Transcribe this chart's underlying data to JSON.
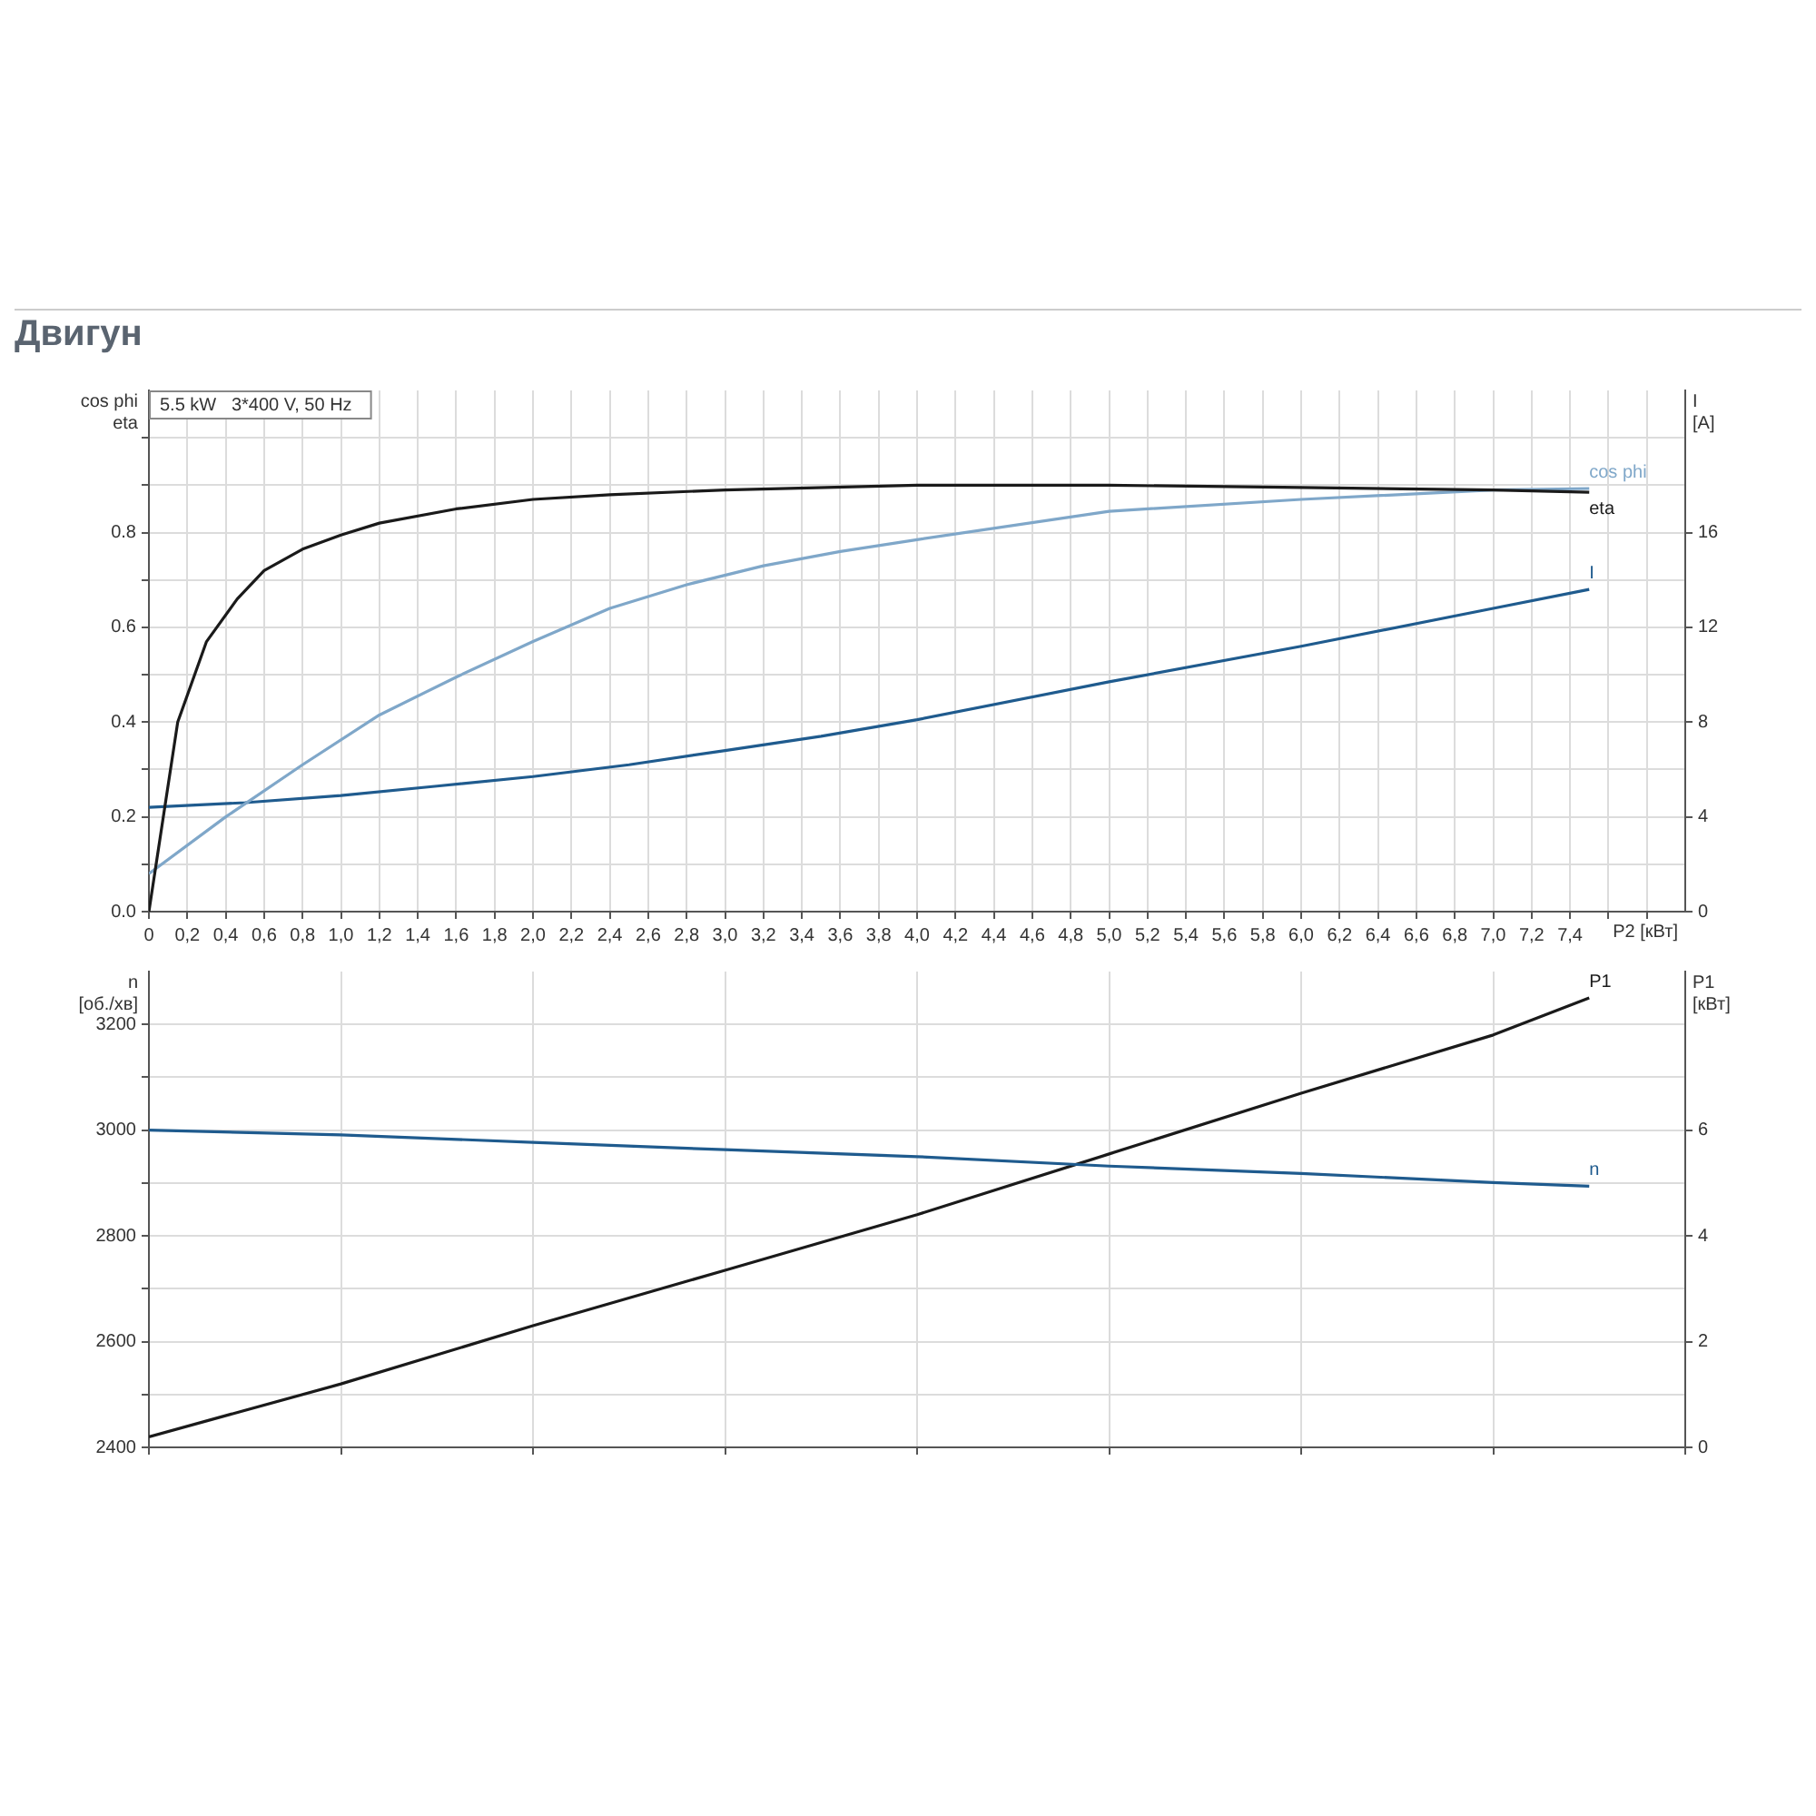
{
  "chart_data": [
    {
      "type": "line",
      "title": "Двигун",
      "xlabel": "P2 [кВт]",
      "ylabel": "cos phi\neta",
      "y2label": "I\n[A]",
      "annotations": [
        "5.5 kW   3*400 V, 50 Hz"
      ],
      "xlim": [
        0,
        8
      ],
      "xticks": [
        {
          "value": 0,
          "label": "0"
        },
        {
          "value": 0.2,
          "label": "0,2"
        },
        {
          "value": 0.4,
          "label": "0,4"
        },
        {
          "value": 0.6,
          "label": "0,6"
        },
        {
          "value": 0.8,
          "label": "0,8"
        },
        {
          "value": 1,
          "label": "1,0"
        },
        {
          "value": 1.2,
          "label": "1,2"
        },
        {
          "value": 1.4,
          "label": "1,4"
        },
        {
          "value": 1.6,
          "label": "1,6"
        },
        {
          "value": 1.8,
          "label": "1,8"
        },
        {
          "value": 2,
          "label": "2,0"
        },
        {
          "value": 2.2,
          "label": "2,2"
        },
        {
          "value": 2.4,
          "label": "2,4"
        },
        {
          "value": 2.6,
          "label": "2,6"
        },
        {
          "value": 2.8,
          "label": "2,8"
        },
        {
          "value": 3,
          "label": "3,0"
        },
        {
          "value": 3.2,
          "label": "3,2"
        },
        {
          "value": 3.4,
          "label": "3,4"
        },
        {
          "value": 3.6,
          "label": "3,6"
        },
        {
          "value": 3.8,
          "label": "3,8"
        },
        {
          "value": 4,
          "label": "4,0"
        },
        {
          "value": 4.2,
          "label": "4,2"
        },
        {
          "value": 4.4,
          "label": "4,4"
        },
        {
          "value": 4.6,
          "label": "4,6"
        },
        {
          "value": 4.8,
          "label": "4,8"
        },
        {
          "value": 5,
          "label": "5,0"
        },
        {
          "value": 5.2,
          "label": "5,2"
        },
        {
          "value": 5.4,
          "label": "5,4"
        },
        {
          "value": 5.6,
          "label": "5,6"
        },
        {
          "value": 5.8,
          "label": "5,8"
        },
        {
          "value": 6,
          "label": "6,0"
        },
        {
          "value": 6.2,
          "label": "6,2"
        },
        {
          "value": 6.4,
          "label": "6,4"
        },
        {
          "value": 6.6,
          "label": "6,6"
        },
        {
          "value": 6.8,
          "label": "6,8"
        },
        {
          "value": 7,
          "label": "7,0"
        },
        {
          "value": 7.2,
          "label": "7,2"
        },
        {
          "value": 7.4,
          "label": "7,4"
        },
        {
          "value": 7.6,
          "label": null
        },
        {
          "value": 7.8,
          "label": null
        }
      ],
      "ylim": [
        0,
        1.1
      ],
      "yticks": [
        {
          "value": 0,
          "label": "0.0"
        },
        {
          "value": 0.1,
          "label": null
        },
        0.2,
        {
          "value": 0.3,
          "label": null
        },
        0.4,
        {
          "value": 0.5,
          "label": null
        },
        0.6,
        {
          "value": 0.7,
          "label": null
        },
        0.8,
        {
          "value": 0.9,
          "label": null
        },
        {
          "value": 1,
          "label": null
        }
      ],
      "y2lim": [
        0,
        22
      ],
      "y2ticks": [
        0,
        4,
        8,
        12,
        16
      ],
      "grid": true,
      "legend": false,
      "marker": "none",
      "line_style": "solid",
      "series": [
        {
          "name": "eta",
          "color": "#1a1a1a",
          "x": [
            0,
            0.15,
            0.3,
            0.46,
            0.6,
            0.8,
            1,
            1.2,
            1.6,
            2,
            2.4,
            3,
            4,
            5,
            6,
            7,
            7.5
          ],
          "values": [
            0,
            0.4,
            0.57,
            0.66,
            0.72,
            0.765,
            0.795,
            0.82,
            0.85,
            0.87,
            0.88,
            0.89,
            0.9,
            0.9,
            0.895,
            0.89,
            0.885
          ]
        },
        {
          "name": "cos phi",
          "color": "#7fa7c9",
          "x": [
            0,
            0.4,
            0.8,
            1.2,
            1.6,
            2,
            2.4,
            2.8,
            3.2,
            3.6,
            4,
            5,
            6,
            7,
            7.5
          ],
          "values": [
            0.08,
            0.2,
            0.31,
            0.415,
            0.495,
            0.57,
            0.64,
            0.69,
            0.73,
            0.76,
            0.785,
            0.845,
            0.87,
            0.89,
            0.893
          ]
        },
        {
          "name": "I",
          "color": "#1f5b8e",
          "axis": "y2",
          "x": [
            0,
            0.5,
            1,
            1.5,
            2,
            2.5,
            3,
            3.5,
            4,
            5,
            6,
            7,
            7.5
          ],
          "values": [
            4.4,
            4.6,
            4.9,
            5.3,
            5.7,
            6.2,
            6.8,
            7.4,
            8.1,
            9.7,
            11.2,
            12.8,
            13.6
          ]
        }
      ]
    },
    {
      "type": "line",
      "ylabel": "n\n[об./хв]",
      "y2label": "P1\n[кВт]",
      "xlim": [
        0,
        8
      ],
      "xticks": [
        {
          "value": 0,
          "label": null
        },
        {
          "value": 1,
          "label": null
        },
        {
          "value": 2,
          "label": null
        },
        {
          "value": 3,
          "label": null
        },
        {
          "value": 4,
          "label": null
        },
        {
          "value": 5,
          "label": null
        },
        {
          "value": 6,
          "label": null
        },
        {
          "value": 7,
          "label": null
        },
        {
          "value": 8,
          "label": null
        }
      ],
      "tick_labels": "y",
      "ylim": [
        2400,
        3300
      ],
      "yticks": [
        2400,
        {
          "value": 2500,
          "label": null
        },
        2600,
        {
          "value": 2700,
          "label": null
        },
        2800,
        {
          "value": 2900,
          "label": null
        },
        3000,
        {
          "value": 3100,
          "label": null
        },
        3200
      ],
      "y2lim": [
        0,
        9
      ],
      "y2ticks": [
        0,
        2,
        4,
        6
      ],
      "grid": true,
      "legend": false,
      "marker": "none",
      "line_style": "solid",
      "series": [
        {
          "name": "n",
          "color": "#1f5b8e",
          "x": [
            0,
            1,
            2,
            3,
            4,
            5,
            6,
            7,
            7.5
          ],
          "values": [
            3000,
            2991,
            2977,
            2963,
            2950,
            2932,
            2918,
            2901,
            2894
          ]
        },
        {
          "name": "P1",
          "color": "#1a1a1a",
          "axis": "y2",
          "x": [
            0,
            1,
            2,
            3,
            4,
            5,
            6,
            7,
            7.5
          ],
          "values": [
            0.2,
            1.2,
            2.3,
            3.35,
            4.4,
            5.55,
            6.7,
            7.8,
            8.5
          ]
        }
      ]
    }
  ]
}
